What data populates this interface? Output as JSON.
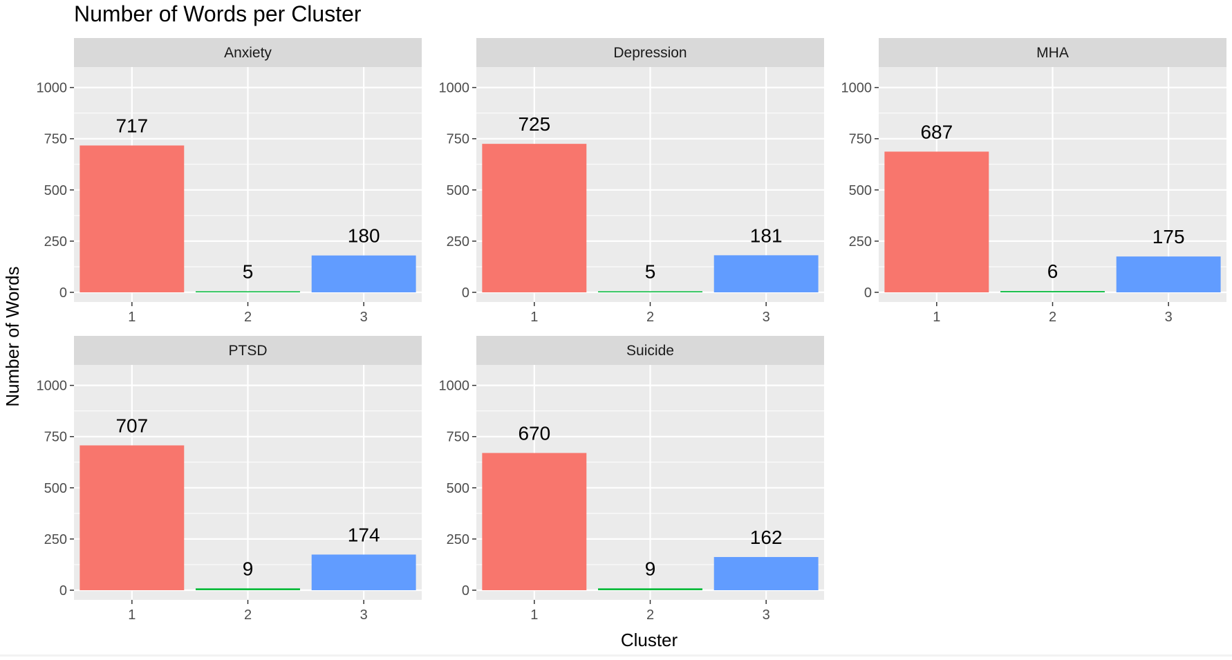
{
  "chart_data": {
    "type": "bar",
    "title": "Number of Words per Cluster",
    "xlabel": "Cluster",
    "ylabel": "Number of Words",
    "categories": [
      "1",
      "2",
      "3"
    ],
    "ylim": [
      0,
      1100
    ],
    "yticks": [
      0,
      250,
      500,
      750,
      1000
    ],
    "facets": [
      {
        "name": "Anxiety",
        "values": [
          717,
          5,
          180
        ]
      },
      {
        "name": "Depression",
        "values": [
          725,
          5,
          181
        ]
      },
      {
        "name": "MHA",
        "values": [
          687,
          6,
          175
        ]
      },
      {
        "name": "PTSD",
        "values": [
          707,
          9,
          174
        ]
      },
      {
        "name": "Suicide",
        "values": [
          670,
          9,
          162
        ]
      }
    ],
    "colors": [
      "#F8766D",
      "#00BA38",
      "#619CFF"
    ],
    "panel_background": "#EBEBEB",
    "strip_background": "#D9D9D9",
    "grid": true,
    "legend": "none"
  }
}
